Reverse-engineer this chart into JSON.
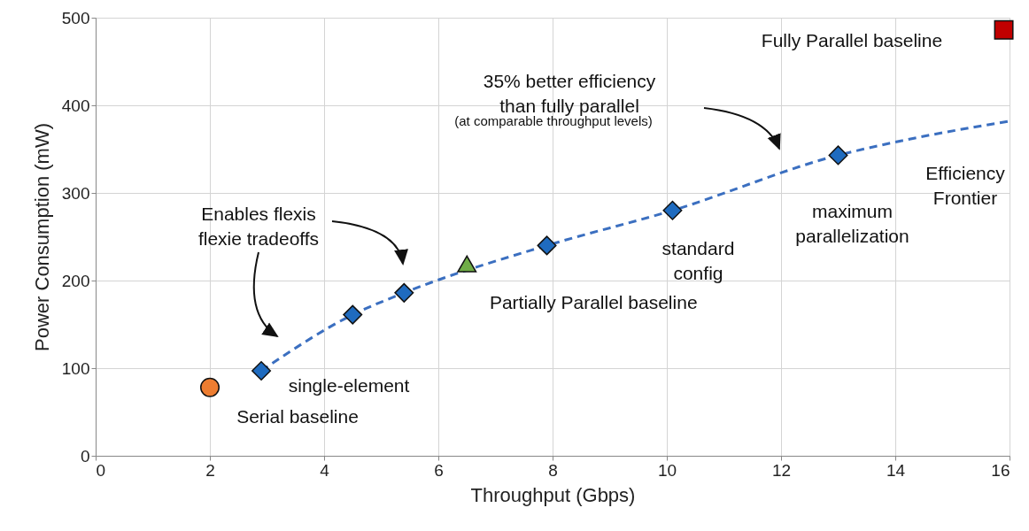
{
  "chart_data": {
    "type": "scatter",
    "xlabel": "Throughput (Gbps)",
    "ylabel": "Power Consumption (mW)",
    "xlim": [
      0,
      16
    ],
    "xticks": [
      0,
      2,
      4,
      6,
      8,
      10,
      12,
      14,
      16
    ],
    "ylim": [
      0,
      500
    ],
    "yticks": [
      0,
      100,
      200,
      300,
      400,
      500
    ],
    "grid": true,
    "series": [
      {
        "type": "line",
        "color": "#3b6fc0",
        "line_style": "dashed",
        "marker": "none",
        "x": [
          2.9,
          4.5,
          5.4,
          7.9,
          10.1,
          13,
          14,
          16
        ],
        "values": [
          97,
          161,
          186,
          240,
          280,
          343,
          358,
          382
        ]
      },
      {
        "color": "#1f6bbf",
        "marker": "diamond",
        "x": [
          2.9,
          4.5,
          5.4,
          7.9,
          10.1,
          13
        ],
        "values": [
          97,
          161,
          186,
          240,
          280,
          343
        ]
      },
      {
        "color": "#ed7d31",
        "marker": "circle",
        "x": [
          2
        ],
        "values": [
          78
        ]
      },
      {
        "color": "#70ad47",
        "marker": "triangle",
        "x": [
          6.5
        ],
        "values": [
          219
        ]
      },
      {
        "color": "#c00000",
        "marker": "square",
        "x": [
          15.9
        ],
        "values": [
          486
        ]
      }
    ],
    "annotations": [
      {
        "text": "single-element",
        "x": 2.9,
        "y": 97
      },
      {
        "text": "Serial baseline",
        "x": 2,
        "y": 78
      },
      {
        "text": "Partially Parallel baseline",
        "x": 6.5,
        "y": 219
      },
      {
        "text": "standard\nconfig",
        "x": 10.1,
        "y": 280
      },
      {
        "text": "maximum\nparallelization",
        "x": 13,
        "y": 343
      },
      "Fully Parallel baseline",
      {
        "text": "Efficiency\nFrontier",
        "x": 16,
        "y": 382
      },
      "35% better efficiency\nthan fully parallel",
      "(at comparable throughput levels)",
      "Enables flexis\nflexie tradeoffs"
    ]
  }
}
